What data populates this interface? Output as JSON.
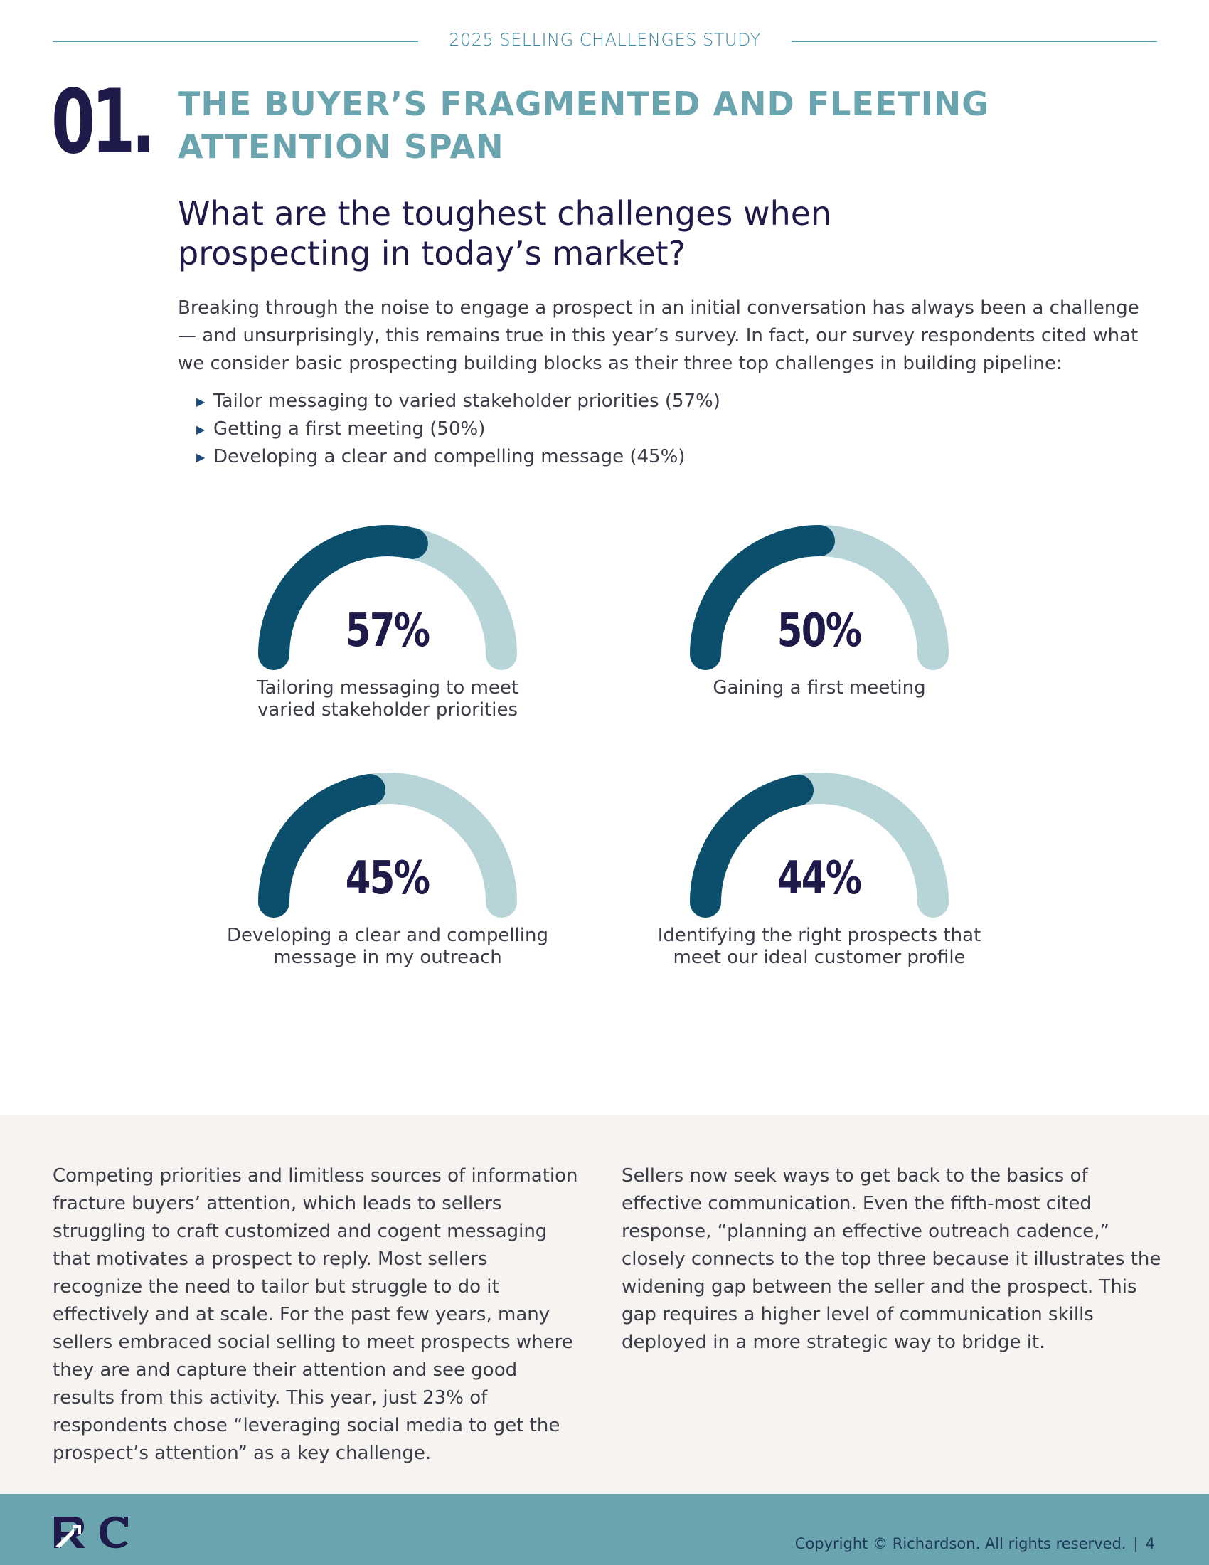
{
  "header": {
    "title": "2025 SELLING CHALLENGES STUDY"
  },
  "section": {
    "number": "01.",
    "title_line1": "THE BUYER’S FRAGMENTED AND FLEETING",
    "title_line2": "ATTENTION SPAN"
  },
  "question": {
    "line1": "What are the toughest challenges when",
    "line2": "prospecting in today’s market?"
  },
  "intro": "Breaking through the noise to engage a prospect in an initial conversation has always been a challenge — and unsurprisingly, this remains true in this year’s survey. In fact, our survey respondents cited what we consider basic prospecting building blocks as their three top challenges in building pipeline:",
  "bullets": [
    "Tailor messaging to varied stakeholder priorities (57%)",
    "Getting a first meeting (50%)",
    "Developing a clear and compelling message (45%)"
  ],
  "chart_data": {
    "type": "gauge",
    "items": [
      {
        "value": 57,
        "value_label": "57%",
        "label_line1": "Tailoring messaging to meet",
        "label_line2": "varied stakeholder priorities"
      },
      {
        "value": 50,
        "value_label": "50%",
        "label_line1": "Gaining a first meeting",
        "label_line2": ""
      },
      {
        "value": 45,
        "value_label": "45%",
        "label_line1": "Developing a clear and compelling",
        "label_line2": "message in my outreach"
      },
      {
        "value": 44,
        "value_label": "44%",
        "label_line1": "Identifying the right prospects that",
        "label_line2": "meet our ideal customer profile"
      }
    ],
    "colors": {
      "filled": "#0b4f6c",
      "track": "#b7d5d9"
    }
  },
  "body": {
    "left": "Competing priorities and limitless sources of information fracture buyers’ attention, which leads to sellers struggling to craft customized and cogent messaging that motivates a prospect to reply. Most sellers recognize the need to tailor but struggle to do it effectively and at scale. For the past few years, many sellers embraced social selling to meet prospects where they are and capture their attention and see good results from this activity. This year, just 23% of respondents chose “leveraging social media to get the prospect’s attention” as a key challenge.",
    "right": "Sellers now seek ways to get back to the basics of effective communication. Even the fifth-most cited response, “planning an effective outreach cadence,” closely connects to the top three because it illustrates the widening gap between the seller and the prospect. This gap requires a higher level of communication skills deployed in a more strategic way to bridge it."
  },
  "footer": {
    "logo_icon": "rc-logo-icon",
    "copyright": "Copyright © Richardson. All rights reserved.",
    "separator": "|",
    "page_number": "4"
  }
}
